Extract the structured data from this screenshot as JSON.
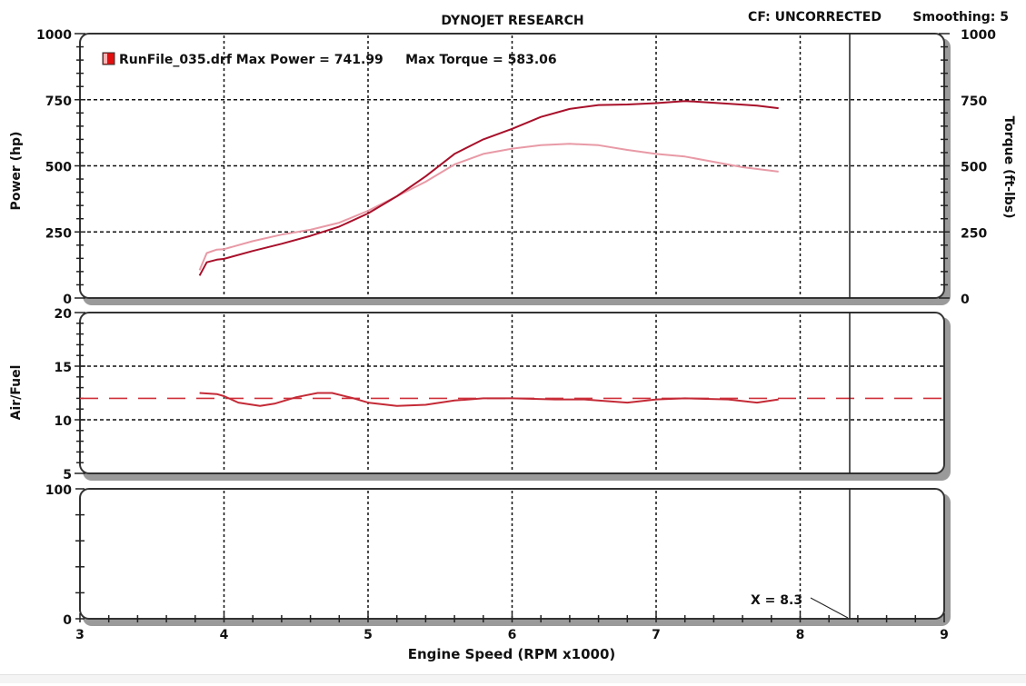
{
  "header": {
    "title": "DYNOJET RESEARCH",
    "correction": "CF: UNCORRECTED",
    "smoothing": "Smoothing: 5"
  },
  "legend": {
    "swatch_color": "#e01010",
    "text": "RunFile_035.drf Max Power = 741.99     Max Torque = 583.06"
  },
  "cursor": {
    "label": "X = 8.3",
    "x_value": 8.33
  },
  "colors": {
    "power": "#a8102a",
    "torque": "#e89aa6",
    "afr": "#c42a36",
    "afr_target": "#d0303a",
    "grid": "#111111",
    "panel_shadow": "#9a9a9a"
  },
  "chart_data": [
    {
      "type": "line",
      "title": "DYNOJET RESEARCH",
      "panel": "power-torque",
      "xlabel": "Engine Speed (RPM x1000)",
      "ylabel": "Power (hp)",
      "ylabel_right": "Torque (ft-lbs)",
      "xlim": [
        3,
        9
      ],
      "ylim": [
        0,
        1000
      ],
      "ylim_right": [
        0,
        1000
      ],
      "x_ticks": [
        "3",
        "4",
        "5",
        "6",
        "7",
        "8",
        "9"
      ],
      "y_ticks": [
        "0",
        "250",
        "500",
        "750",
        "1000"
      ],
      "y_ticks_right": [
        "0",
        "250",
        "500",
        "750",
        "1000"
      ],
      "grid": true,
      "legend_position": "top-left",
      "series": [
        {
          "name": "Power (hp)",
          "x": [
            3.83,
            3.88,
            3.95,
            4.0,
            4.2,
            4.4,
            4.6,
            4.8,
            5.0,
            5.2,
            5.4,
            5.6,
            5.8,
            6.0,
            6.2,
            6.4,
            6.6,
            6.8,
            7.0,
            7.2,
            7.3,
            7.5,
            7.7,
            7.85
          ],
          "values": [
            85,
            135,
            145,
            148,
            178,
            205,
            235,
            270,
            320,
            385,
            460,
            545,
            600,
            640,
            685,
            715,
            730,
            732,
            737,
            745,
            742,
            735,
            728,
            718
          ]
        },
        {
          "name": "Torque (ft-lbs)",
          "x": [
            3.83,
            3.88,
            3.95,
            4.0,
            4.2,
            4.4,
            4.6,
            4.8,
            5.0,
            5.2,
            5.4,
            5.6,
            5.8,
            6.0,
            6.2,
            6.4,
            6.6,
            6.8,
            7.0,
            7.2,
            7.4,
            7.6,
            7.85
          ],
          "values": [
            105,
            170,
            183,
            185,
            215,
            240,
            258,
            285,
            330,
            385,
            440,
            505,
            545,
            565,
            578,
            583,
            578,
            560,
            545,
            535,
            515,
            495,
            478
          ]
        }
      ]
    },
    {
      "type": "line",
      "panel": "air-fuel",
      "ylabel": "Air/Fuel",
      "xlim": [
        3,
        9
      ],
      "ylim": [
        5,
        20
      ],
      "y_ticks": [
        "5",
        "10",
        "15",
        "20"
      ],
      "grid": true,
      "series": [
        {
          "name": "Air/Fuel",
          "x": [
            3.83,
            3.95,
            4.0,
            4.1,
            4.25,
            4.35,
            4.5,
            4.65,
            4.75,
            4.9,
            5.0,
            5.2,
            5.4,
            5.6,
            5.8,
            6.0,
            6.3,
            6.5,
            6.8,
            7.0,
            7.2,
            7.5,
            7.7,
            7.85
          ],
          "values": [
            12.5,
            12.4,
            12.2,
            11.6,
            11.3,
            11.5,
            12.1,
            12.5,
            12.5,
            12.0,
            11.6,
            11.3,
            11.4,
            11.8,
            12.0,
            12.0,
            11.9,
            11.9,
            11.6,
            11.9,
            12.0,
            11.9,
            11.6,
            11.9
          ]
        },
        {
          "name": "Target AFR (dashed)",
          "x": [
            3,
            9
          ],
          "values": [
            12,
            12
          ]
        }
      ]
    },
    {
      "type": "line",
      "panel": "auxiliary",
      "xlabel": "Engine Speed (RPM x1000)",
      "xlim": [
        3,
        9
      ],
      "ylim": [
        0,
        100
      ],
      "y_ticks": [
        "0",
        "100"
      ],
      "x_ticks": [
        "3",
        "4",
        "5",
        "6",
        "7",
        "8",
        "9"
      ],
      "grid": true,
      "series": []
    }
  ],
  "axes": {
    "x_label": "Engine Speed (RPM x1000)",
    "x_ticks": [
      "3",
      "4",
      "5",
      "6",
      "7",
      "8",
      "9"
    ],
    "power_label": "Power (hp)",
    "torque_label": "Torque (ft-lbs)",
    "power_ticks": [
      "1000",
      "750",
      "500",
      "250",
      "0"
    ],
    "torque_ticks": [
      "1000",
      "750",
      "500",
      "250",
      "0"
    ],
    "afr_label": "Air/Fuel",
    "afr_ticks": [
      "20",
      "15",
      "10",
      "5"
    ],
    "aux_ticks": [
      "100",
      "0"
    ]
  }
}
